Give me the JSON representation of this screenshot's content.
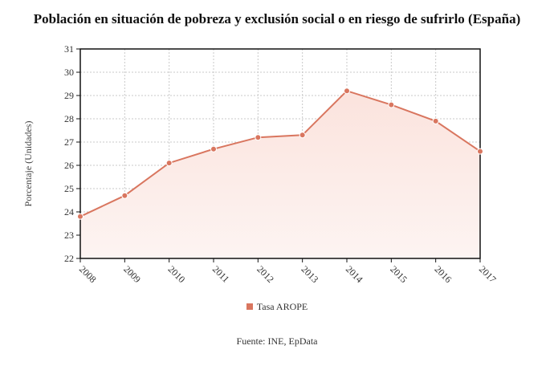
{
  "chart_data": {
    "type": "area",
    "title": "Población en situación de pobreza y exclusión social o en riesgo de sufrirlo (España)",
    "ylabel": "Porcentaje (Unidades)",
    "xlabel": "",
    "categories": [
      "2008",
      "2009",
      "2010",
      "2011",
      "2012",
      "2013",
      "2014",
      "2015",
      "2016",
      "2017"
    ],
    "series": [
      {
        "name": "Tasa AROPE",
        "values": [
          23.8,
          24.7,
          26.1,
          26.7,
          27.2,
          27.3,
          29.2,
          28.6,
          27.9,
          26.6
        ]
      }
    ],
    "ylim": [
      22,
      31
    ],
    "yticks": [
      "22",
      "23",
      "24",
      "25",
      "26",
      "27",
      "28",
      "29",
      "30",
      "31"
    ],
    "grid": true,
    "legend_position": "bottom",
    "colors": {
      "line": "#d9765f",
      "fill_top": "#fbe3dd",
      "fill_bottom": "#fdf4f2"
    },
    "source": "Fuente: INE, EpData"
  }
}
